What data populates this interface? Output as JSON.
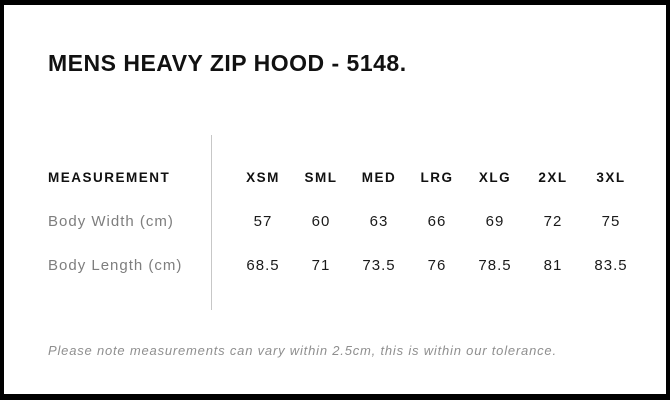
{
  "title": "MENS HEAVY ZIP HOOD - 5148.",
  "table": {
    "measurement_header": "MEASUREMENT",
    "size_headers": [
      "XSM",
      "SML",
      "MED",
      "LRG",
      "XLG",
      "2XL",
      "3XL"
    ],
    "rows": [
      {
        "label": "Body Width (cm)",
        "values": [
          "57",
          "60",
          "63",
          "66",
          "69",
          "72",
          "75"
        ]
      },
      {
        "label": "Body Length (cm)",
        "values": [
          "68.5",
          "71",
          "73.5",
          "76",
          "78.5",
          "81",
          "83.5"
        ]
      }
    ]
  },
  "footnote": "Please note measurements can vary within 2.5cm, this is within our tolerance.",
  "colors": {
    "frame": "#000000",
    "background": "#ffffff",
    "heading_text": "#111111",
    "value_text": "#1a1a1a",
    "muted_text": "#7e7e7e",
    "note_text": "#8f8f8f",
    "divider": "#c7c7c7"
  },
  "chart_data": {
    "type": "table",
    "title": "MENS HEAVY ZIP HOOD - 5148.",
    "columns": [
      "MEASUREMENT",
      "XSM",
      "SML",
      "MED",
      "LRG",
      "XLG",
      "2XL",
      "3XL"
    ],
    "rows": [
      [
        "Body Width (cm)",
        57,
        60,
        63,
        66,
        69,
        72,
        75
      ],
      [
        "Body Length (cm)",
        68.5,
        71,
        73.5,
        76,
        78.5,
        81,
        83.5
      ]
    ],
    "note": "Please note measurements can vary within 2.5cm, this is within our tolerance.",
    "layout_hints": {
      "label_column_divider": true,
      "header_row_bold": true,
      "frame_border": "black"
    }
  }
}
